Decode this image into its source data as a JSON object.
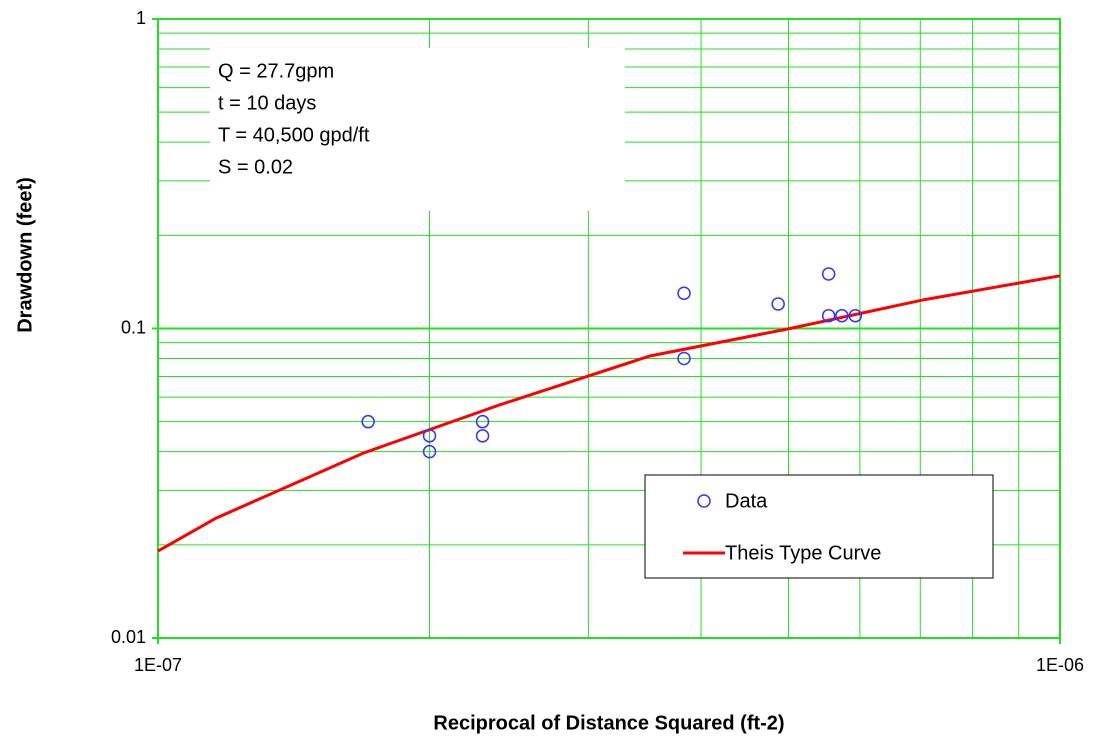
{
  "chart_data": {
    "type": "scatter",
    "xlabel": "Reciprocal of Distance Squared (ft-2)",
    "ylabel": "Drawdown (feet)",
    "annotations": [
      "Q = 27.7gpm",
      "t = 10 days",
      "T = 40,500 gpd/ft",
      "S = 0.02"
    ],
    "xscale": "log",
    "yscale": "log",
    "grid": true,
    "grid_color": "#22e022",
    "xlim": [
      1e-07,
      1e-06
    ],
    "xticks": [
      {
        "value": 1e-07,
        "label": "1E-07"
      },
      {
        "value": 1e-06,
        "label": "1E-06"
      }
    ],
    "x_minor_grid": [
      2e-07,
      3e-07,
      4e-07,
      5e-07,
      6e-07,
      7e-07,
      8e-07,
      9e-07
    ],
    "ylim": [
      0.01,
      1
    ],
    "yticks": [
      0.01,
      0.1,
      1
    ],
    "y_minor_grid": [
      0.02,
      0.03,
      0.04,
      0.05,
      0.06,
      0.07,
      0.08,
      0.09,
      0.2,
      0.3,
      0.4,
      0.5,
      0.6,
      0.7,
      0.8,
      0.9
    ],
    "legend": "lower right",
    "series": [
      {
        "name": "Data",
        "type": "scatter",
        "color": "#3333ff",
        "x": [
          1.71e-07,
          2e-07,
          2e-07,
          2.29e-07,
          2.29e-07,
          3.83e-07,
          3.83e-07,
          4.87e-07,
          5.54e-07,
          5.54e-07,
          5.73e-07,
          5.93e-07
        ],
        "values": [
          0.05,
          0.045,
          0.04,
          0.05,
          0.045,
          0.13,
          0.08,
          0.12,
          0.15,
          0.11,
          0.11,
          0.11
        ]
      },
      {
        "name": "Theis Type Curve",
        "type": "line",
        "color": "#ff0000",
        "x": [
          1e-07,
          1.16e-07,
          1.69e-07,
          2.39e-07,
          3.51e-07,
          5.02e-07,
          7.08e-07,
          1e-06
        ],
        "values": [
          0.0191,
          0.0244,
          0.0396,
          0.0566,
          0.0815,
          0.1,
          0.124,
          0.148
        ]
      }
    ]
  }
}
